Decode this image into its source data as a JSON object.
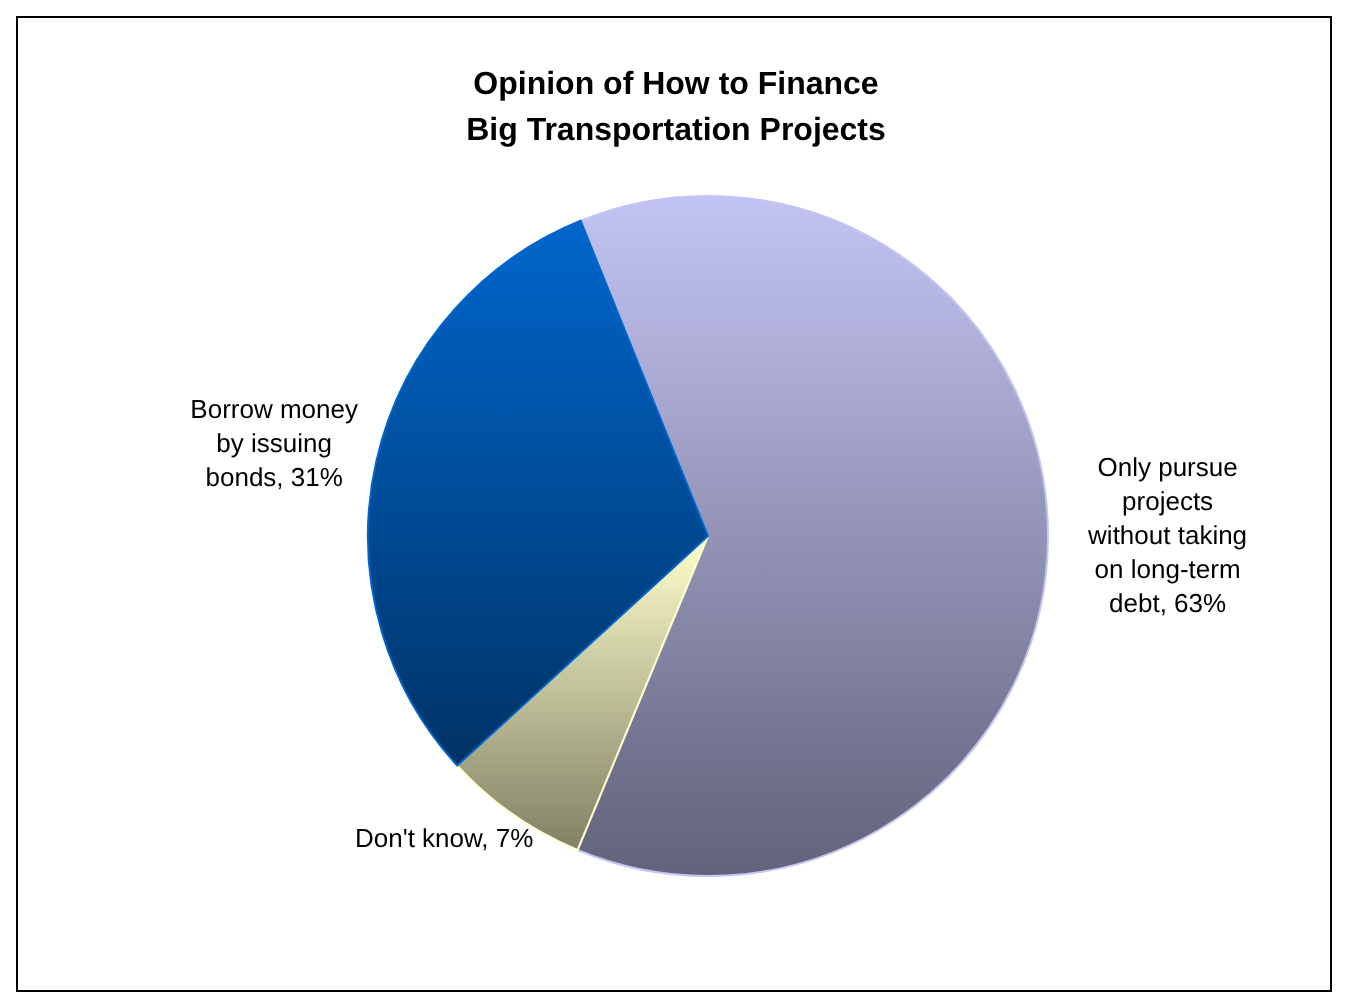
{
  "chart_data": {
    "type": "pie",
    "title": "Opinion of How to Finance\nBig Transportation Projects",
    "categories": [
      "Only pursue projects without taking on long-term debt",
      "Don't know",
      "Borrow money by issuing bonds"
    ],
    "values": [
      63,
      7,
      31
    ],
    "value_labels": [
      "63%",
      "7%",
      "31%"
    ],
    "colors": [
      "#c4c4f4",
      "#ffffcc",
      "#0066cc"
    ],
    "data_labels": true,
    "legend": false
  }
}
